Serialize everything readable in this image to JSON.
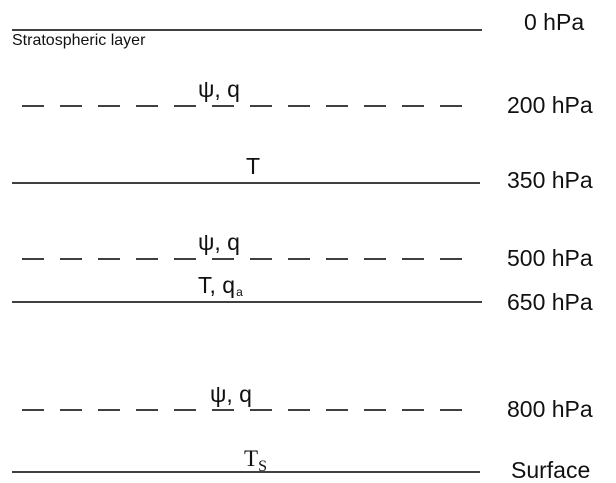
{
  "diagram": {
    "stratosphere_label": "Stratospheric layer",
    "levels": [
      {
        "label": "0 hPa",
        "line": "solid"
      },
      {
        "label": "200 hPa",
        "line": "dashed",
        "vars": "ψ, q"
      },
      {
        "label": "350 hPa",
        "line": "solid",
        "vars": "T"
      },
      {
        "label": "500 hPa",
        "line": "dashed",
        "vars": "ψ, q"
      },
      {
        "label": "650 hPa",
        "line": "solid",
        "vars_main": "T, q",
        "vars_sub": "a"
      },
      {
        "label": "800 hPa",
        "line": "dashed",
        "vars": "ψ, q"
      },
      {
        "label": "Surface",
        "line": "solid",
        "vars_main": "T",
        "vars_sub": "S"
      }
    ]
  }
}
